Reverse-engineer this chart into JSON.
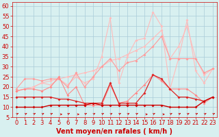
{
  "xlabel": "Vent moyen/en rafales ( km/h )",
  "xlim": [
    -0.5,
    23.5
  ],
  "ylim": [
    5,
    62
  ],
  "yticks": [
    5,
    10,
    15,
    20,
    25,
    30,
    35,
    40,
    45,
    50,
    55,
    60
  ],
  "xticks": [
    0,
    1,
    2,
    3,
    4,
    5,
    6,
    7,
    8,
    9,
    10,
    11,
    12,
    13,
    14,
    15,
    16,
    17,
    18,
    19,
    20,
    21,
    22,
    23
  ],
  "background_color": "#d8f0f0",
  "grid_color": "#aaccd8",
  "xlabel_color": "#cc0000",
  "xlabel_fontsize": 7,
  "tick_fontsize": 6,
  "tick_color": "#cc0000",
  "lines": [
    {
      "x": [
        0,
        1,
        2,
        3,
        4,
        5,
        6,
        7,
        8,
        9,
        10,
        11,
        12,
        13,
        14,
        15,
        16,
        17,
        18,
        19,
        20,
        21,
        22,
        23
      ],
      "y": [
        18,
        19,
        20,
        22,
        23,
        24,
        25,
        26,
        27,
        28,
        30,
        33,
        34,
        36,
        38,
        40,
        44,
        48,
        34,
        40,
        50,
        34,
        26,
        29
      ],
      "color": "#ffbbbb",
      "lw": 0.8,
      "marker": "D",
      "ms": 2.0
    },
    {
      "x": [
        0,
        1,
        2,
        3,
        4,
        5,
        6,
        7,
        8,
        9,
        10,
        11,
        12,
        13,
        14,
        15,
        16,
        17,
        18,
        19,
        20,
        21,
        22,
        23
      ],
      "y": [
        18,
        19,
        20,
        22,
        21,
        24,
        21,
        25,
        22,
        24,
        35,
        54,
        22,
        35,
        43,
        44,
        57,
        50,
        19,
        34,
        53,
        28,
        22,
        29
      ],
      "color": "#ffbbbb",
      "lw": 0.8,
      "marker": "D",
      "ms": 2.0
    },
    {
      "x": [
        0,
        1,
        2,
        3,
        4,
        5,
        6,
        7,
        8,
        9,
        10,
        11,
        12,
        13,
        14,
        15,
        16,
        17,
        18,
        19,
        20,
        21,
        22,
        23
      ],
      "y": [
        19,
        24,
        24,
        23,
        24,
        24,
        20,
        27,
        20,
        25,
        30,
        34,
        28,
        32,
        33,
        36,
        40,
        45,
        34,
        34,
        34,
        34,
        27,
        29
      ],
      "color": "#ff9999",
      "lw": 0.8,
      "marker": "D",
      "ms": 2.0
    },
    {
      "x": [
        0,
        1,
        2,
        3,
        4,
        5,
        6,
        7,
        8,
        9,
        10,
        11,
        12,
        13,
        14,
        15,
        16,
        17,
        18,
        19,
        20,
        21,
        22,
        23
      ],
      "y": [
        18,
        19,
        19,
        18,
        20,
        25,
        16,
        20,
        11,
        11,
        11,
        21,
        12,
        13,
        17,
        21,
        26,
        23,
        19,
        19,
        19,
        16,
        12,
        15
      ],
      "color": "#ff8888",
      "lw": 0.8,
      "marker": "D",
      "ms": 2.0
    },
    {
      "x": [
        0,
        1,
        2,
        3,
        4,
        5,
        6,
        7,
        8,
        9,
        10,
        11,
        12,
        13,
        14,
        15,
        16,
        17,
        18,
        19,
        20,
        21,
        22,
        23
      ],
      "y": [
        15,
        15,
        15,
        15,
        15,
        14,
        14,
        13,
        12,
        12,
        12,
        22,
        12,
        12,
        12,
        17,
        26,
        24,
        19,
        15,
        15,
        14,
        13,
        15
      ],
      "color": "#dd2222",
      "lw": 0.9,
      "marker": "D",
      "ms": 2.0
    },
    {
      "x": [
        0,
        1,
        2,
        3,
        4,
        5,
        6,
        7,
        8,
        9,
        10,
        11,
        12,
        13,
        14,
        15,
        16,
        17,
        18,
        19,
        20,
        21,
        22,
        23
      ],
      "y": [
        10,
        10,
        10,
        10,
        11,
        11,
        11,
        11,
        11,
        12,
        11,
        11,
        11,
        11,
        11,
        11,
        11,
        11,
        10,
        10,
        10,
        10,
        13,
        15
      ],
      "color": "#cc0000",
      "lw": 1.0,
      "marker": "D",
      "ms": 2.0
    }
  ],
  "arrows": {
    "positions": [
      0,
      1,
      2,
      3,
      4,
      5,
      6,
      7,
      8,
      9,
      10,
      11,
      12,
      13,
      14,
      15,
      16,
      17,
      18,
      19,
      20,
      21,
      22,
      23
    ],
    "angles_deg": [
      45,
      45,
      45,
      45,
      45,
      0,
      45,
      0,
      45,
      45,
      45,
      45,
      45,
      45,
      45,
      0,
      45,
      0,
      45,
      45,
      45,
      45,
      45,
      45
    ],
    "y": 6.5,
    "color": "#cc0000"
  }
}
